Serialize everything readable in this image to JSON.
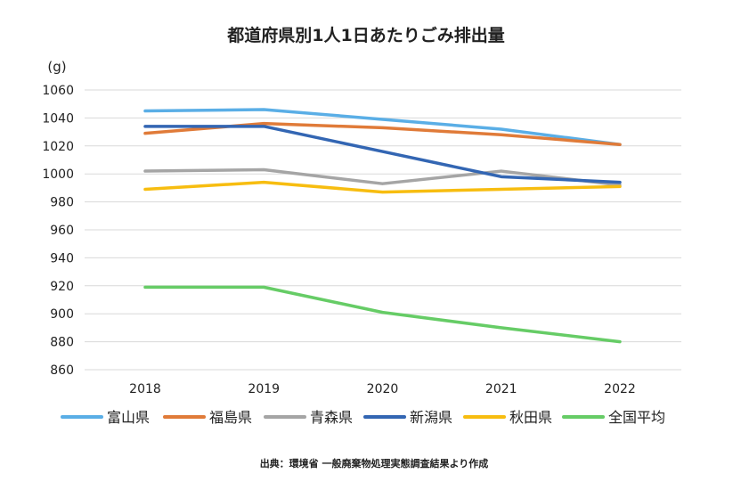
{
  "chart_data": {
    "type": "line",
    "title": "都道府県別1人1日あたりごみ排出量",
    "ylabel": "(g)",
    "xlabel": "",
    "categories": [
      "2018",
      "2019",
      "2020",
      "2021",
      "2022"
    ],
    "ylim": [
      860,
      1060
    ],
    "yticks": [
      860,
      880,
      900,
      920,
      940,
      960,
      980,
      1000,
      1020,
      1040,
      1060
    ],
    "grid": true,
    "legend_position": "bottom",
    "series": [
      {
        "name": "富山県",
        "color": "#5aaee6",
        "values": [
          1045,
          1046,
          1039,
          1032,
          1021
        ]
      },
      {
        "name": "福島県",
        "color": "#e07b39",
        "values": [
          1029,
          1036,
          1033,
          1028,
          1021
        ]
      },
      {
        "name": "青森県",
        "color": "#a5a5a5",
        "values": [
          1002,
          1003,
          993,
          1002,
          992
        ]
      },
      {
        "name": "新潟県",
        "color": "#3366b3",
        "values": [
          1034,
          1034,
          1016,
          998,
          994
        ]
      },
      {
        "name": "秋田県",
        "color": "#f7bd10",
        "values": [
          989,
          994,
          987,
          989,
          991
        ]
      },
      {
        "name": "全国平均",
        "color": "#66cc66",
        "values": [
          919,
          919,
          901,
          890,
          880
        ]
      }
    ],
    "source": "出典：環境省 一般廃棄物処理実態調査結果より作成"
  }
}
